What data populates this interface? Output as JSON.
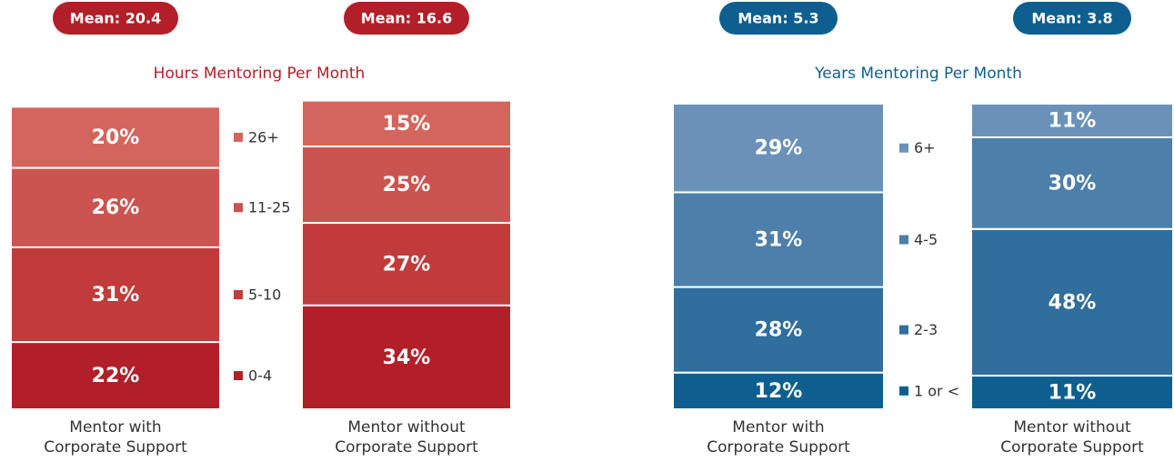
{
  "chart_data": [
    {
      "type": "bar",
      "stacked": true,
      "title": "Hours Mentoring Per Month",
      "annotations": [
        "Mean: 20.4",
        "Mean: 16.6"
      ],
      "categories": [
        "Mentor with Corporate Support",
        "Mentor without Corporate Support"
      ],
      "series": [
        {
          "name": "0-4",
          "color": "#b31f29",
          "values": [
            22,
            34
          ],
          "value_labels": [
            "22%",
            "34%"
          ]
        },
        {
          "name": "5-10",
          "color": "#c13b3b",
          "values": [
            31,
            27
          ],
          "value_labels": [
            "31%",
            "27%"
          ]
        },
        {
          "name": "11-25",
          "color": "#cb5450",
          "values": [
            26,
            25
          ],
          "value_labels": [
            "26%",
            "25%"
          ]
        },
        {
          "name": "26+",
          "color": "#d4655c",
          "values": [
            20,
            15
          ],
          "value_labels": [
            "20%",
            "15%"
          ]
        }
      ]
    },
    {
      "type": "bar",
      "stacked": true,
      "title": "Years Mentoring Per Month",
      "annotations": [
        "Mean: 5.3",
        "Mean: 3.8"
      ],
      "categories": [
        "Mentor with Corporate Support",
        "Mentor without Corporate Support"
      ],
      "series": [
        {
          "name": "1 or <",
          "color": "#0e5f8f",
          "values": [
            12,
            11
          ],
          "value_labels": [
            "12%",
            "11%"
          ]
        },
        {
          "name": "2-3",
          "color": "#2f6e9d",
          "values": [
            28,
            48
          ],
          "value_labels": [
            "28%",
            "48%"
          ]
        },
        {
          "name": "4-5",
          "color": "#4c7faa",
          "values": [
            31,
            30
          ],
          "value_labels": [
            "31%",
            "30%"
          ]
        },
        {
          "name": "6+",
          "color": "#6a92b9",
          "values": [
            29,
            11
          ],
          "value_labels": [
            "29%",
            "11%"
          ]
        }
      ]
    }
  ]
}
